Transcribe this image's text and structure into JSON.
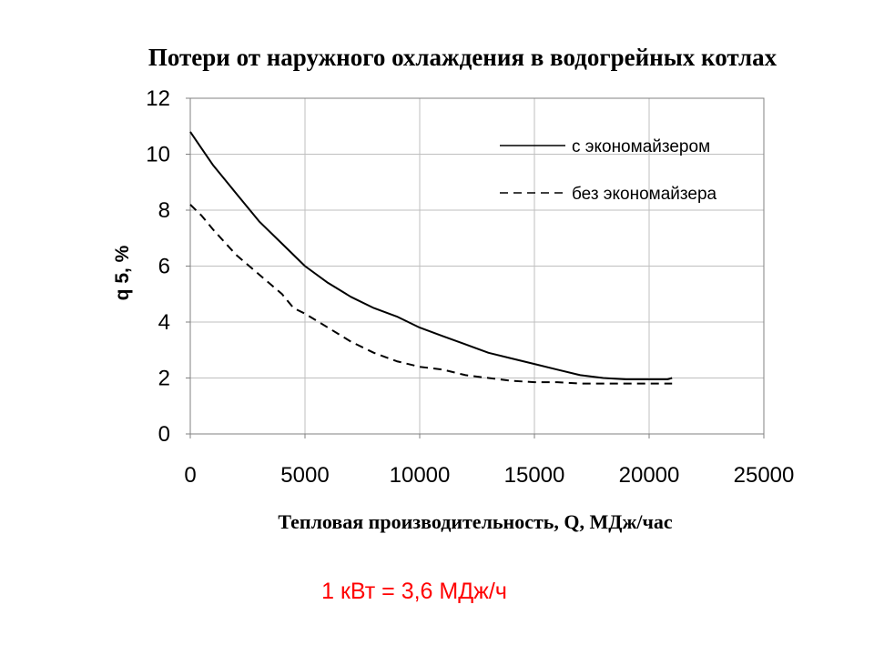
{
  "chart_data": {
    "type": "line",
    "title": "Потери от наружного охлаждения в водогрейных котлах",
    "xlabel": "Тепловая производительность, Q, МДж/час",
    "ylabel": "q 5, %",
    "xlim": [
      0,
      25000
    ],
    "ylim": [
      0,
      12
    ],
    "xticks": [
      "0",
      "5000",
      "10000",
      "15000",
      "20000",
      "25000"
    ],
    "yticks": [
      "0",
      "2",
      "4",
      "6",
      "8",
      "10",
      "12"
    ],
    "grid": true,
    "legend_position": "top-right",
    "series": [
      {
        "name": "с экономайзером",
        "style": "solid",
        "points": [
          [
            0,
            10.8
          ],
          [
            500,
            10.2
          ],
          [
            1000,
            9.6
          ],
          [
            2000,
            8.6
          ],
          [
            3000,
            7.6
          ],
          [
            4000,
            6.8
          ],
          [
            5000,
            6.0
          ],
          [
            6000,
            5.4
          ],
          [
            7000,
            4.9
          ],
          [
            8000,
            4.5
          ],
          [
            9000,
            4.2
          ],
          [
            10000,
            3.8
          ],
          [
            11000,
            3.5
          ],
          [
            12000,
            3.2
          ],
          [
            13000,
            2.9
          ],
          [
            14000,
            2.7
          ],
          [
            15000,
            2.5
          ],
          [
            16000,
            2.3
          ],
          [
            17000,
            2.1
          ],
          [
            18000,
            2.0
          ],
          [
            19000,
            1.95
          ],
          [
            20000,
            1.95
          ],
          [
            20800,
            1.95
          ],
          [
            21000,
            2.0
          ]
        ]
      },
      {
        "name": "без экономайзера",
        "style": "dashed",
        "points": [
          [
            0,
            8.2
          ],
          [
            500,
            7.8
          ],
          [
            1000,
            7.3
          ],
          [
            2000,
            6.4
          ],
          [
            3000,
            5.7
          ],
          [
            4000,
            5.0
          ],
          [
            4500,
            4.5
          ],
          [
            5000,
            4.3
          ],
          [
            6000,
            3.8
          ],
          [
            7000,
            3.3
          ],
          [
            8000,
            2.9
          ],
          [
            9000,
            2.6
          ],
          [
            10000,
            2.4
          ],
          [
            11000,
            2.3
          ],
          [
            12000,
            2.1
          ],
          [
            13000,
            2.0
          ],
          [
            14000,
            1.9
          ],
          [
            15000,
            1.85
          ],
          [
            16000,
            1.85
          ],
          [
            17000,
            1.8
          ],
          [
            18000,
            1.8
          ],
          [
            19000,
            1.8
          ],
          [
            20000,
            1.8
          ],
          [
            21000,
            1.8
          ]
        ]
      }
    ]
  },
  "note": {
    "text": "1 кВт = 3,6 МДж/ч",
    "color": "#ff0000"
  },
  "colors": {
    "line": "#000000",
    "grid": "#bfbfbf",
    "axis": "#808080"
  }
}
